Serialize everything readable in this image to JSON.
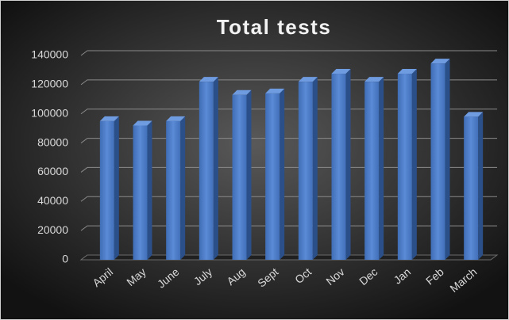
{
  "chart_data": {
    "type": "bar",
    "title": "Total tests",
    "categories": [
      "April",
      "May",
      "June",
      "July",
      "Aug",
      "Sept",
      "Oct",
      "Nov",
      "Dec",
      "Jan",
      "Feb",
      "March"
    ],
    "values": [
      95000,
      92000,
      95000,
      122000,
      113000,
      114000,
      122000,
      127500,
      122000,
      127500,
      134500,
      98000
    ],
    "color": "#4a7cc9",
    "ylim": [
      0,
      140000
    ],
    "yticks": [
      0,
      20000,
      40000,
      60000,
      80000,
      100000,
      120000,
      140000
    ],
    "grid": true
  }
}
